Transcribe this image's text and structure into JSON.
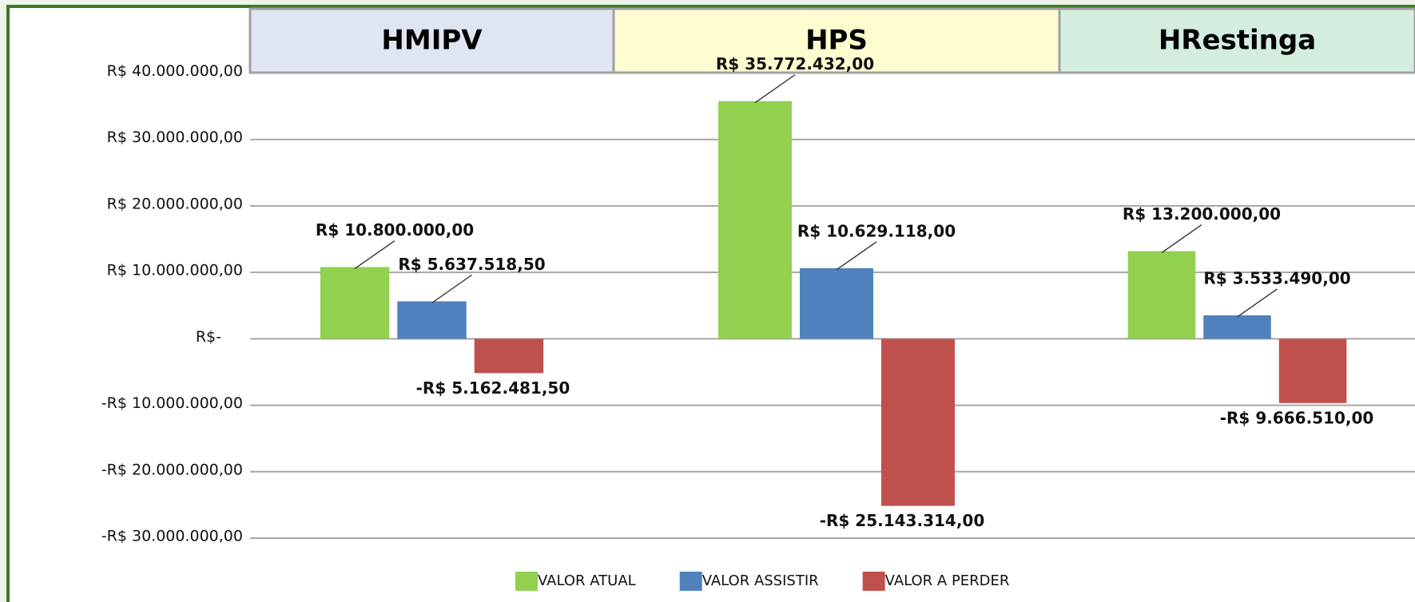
{
  "chart_data": {
    "type": "bar",
    "categories": [
      "HMIPV",
      "HPS",
      "HRestinga"
    ],
    "category_colors": [
      "#dfe6f1",
      "#fefdd0",
      "#d3eedf"
    ],
    "series": [
      {
        "name": "VALOR ATUAL",
        "color": "#92d050",
        "values": [
          10800000,
          35772432,
          13200000
        ],
        "value_labels": [
          "R$ 10.800.000,00",
          "R$ 35.772.432,00",
          "R$ 13.200.000,00"
        ]
      },
      {
        "name": "VALOR ASSISTIR",
        "color": "#4f81bd",
        "values": [
          5637518.5,
          10629118,
          3533490
        ],
        "value_labels": [
          "R$ 5.637.518,50",
          "R$ 10.629.118,00",
          "R$ 3.533.490,00"
        ]
      },
      {
        "name": "VALOR A PERDER",
        "color": "#c0504d",
        "values": [
          -5162481.5,
          -25143314,
          -9666510
        ],
        "value_labels": [
          "-R$ 5.162.481,50",
          "-R$ 25.143.314,00",
          "-R$ 9.666.510,00"
        ]
      }
    ],
    "ylim": [
      -30000000,
      40000000
    ],
    "yticks": [
      {
        "value": 40000000,
        "label": "R$ 40.000.000,00"
      },
      {
        "value": 30000000,
        "label": "R$ 30.000.000,00"
      },
      {
        "value": 20000000,
        "label": "R$ 20.000.000,00"
      },
      {
        "value": 10000000,
        "label": "R$ 10.000.000,00"
      },
      {
        "value": 0,
        "label": "R$-"
      },
      {
        "value": -10000000,
        "label": "-R$ 10.000.000,00"
      },
      {
        "value": -20000000,
        "label": "-R$ 20.000.000,00"
      },
      {
        "value": -30000000,
        "label": "-R$ 30.000.000,00"
      }
    ],
    "grid": true
  }
}
